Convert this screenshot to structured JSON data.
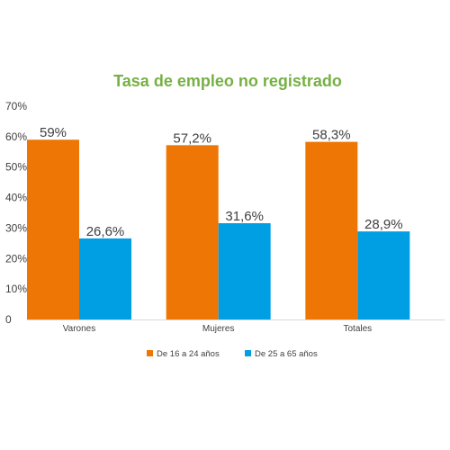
{
  "chart_data": {
    "type": "bar",
    "title": "Tasa de empleo no registrado",
    "categories": [
      "Varones",
      "Mujeres",
      "Totales"
    ],
    "series": [
      {
        "name": "De 16 a 24 años",
        "color": "#ED7604",
        "values": [
          59,
          57.2,
          58.3
        ],
        "labels": [
          "59%",
          "57,2%",
          "58,3%"
        ]
      },
      {
        "name": "De 25 a 65 años",
        "color": "#009FE3",
        "values": [
          26.6,
          31.6,
          28.9
        ],
        "labels": [
          "26,6%",
          "31,6%",
          "28,9%"
        ]
      }
    ],
    "y_ticks": [
      {
        "value": 0,
        "label": "0"
      },
      {
        "value": 10,
        "label": "10%"
      },
      {
        "value": 20,
        "label": "20%"
      },
      {
        "value": 30,
        "label": "30%"
      },
      {
        "value": 40,
        "label": "40%"
      },
      {
        "value": 50,
        "label": "50%"
      },
      {
        "value": 60,
        "label": "60%"
      },
      {
        "value": 70,
        "label": "70%"
      }
    ],
    "ylim": [
      0,
      70
    ],
    "xlabel": "",
    "ylabel": "",
    "title_color": "#76B043",
    "grid": false,
    "legend": "bottom"
  }
}
